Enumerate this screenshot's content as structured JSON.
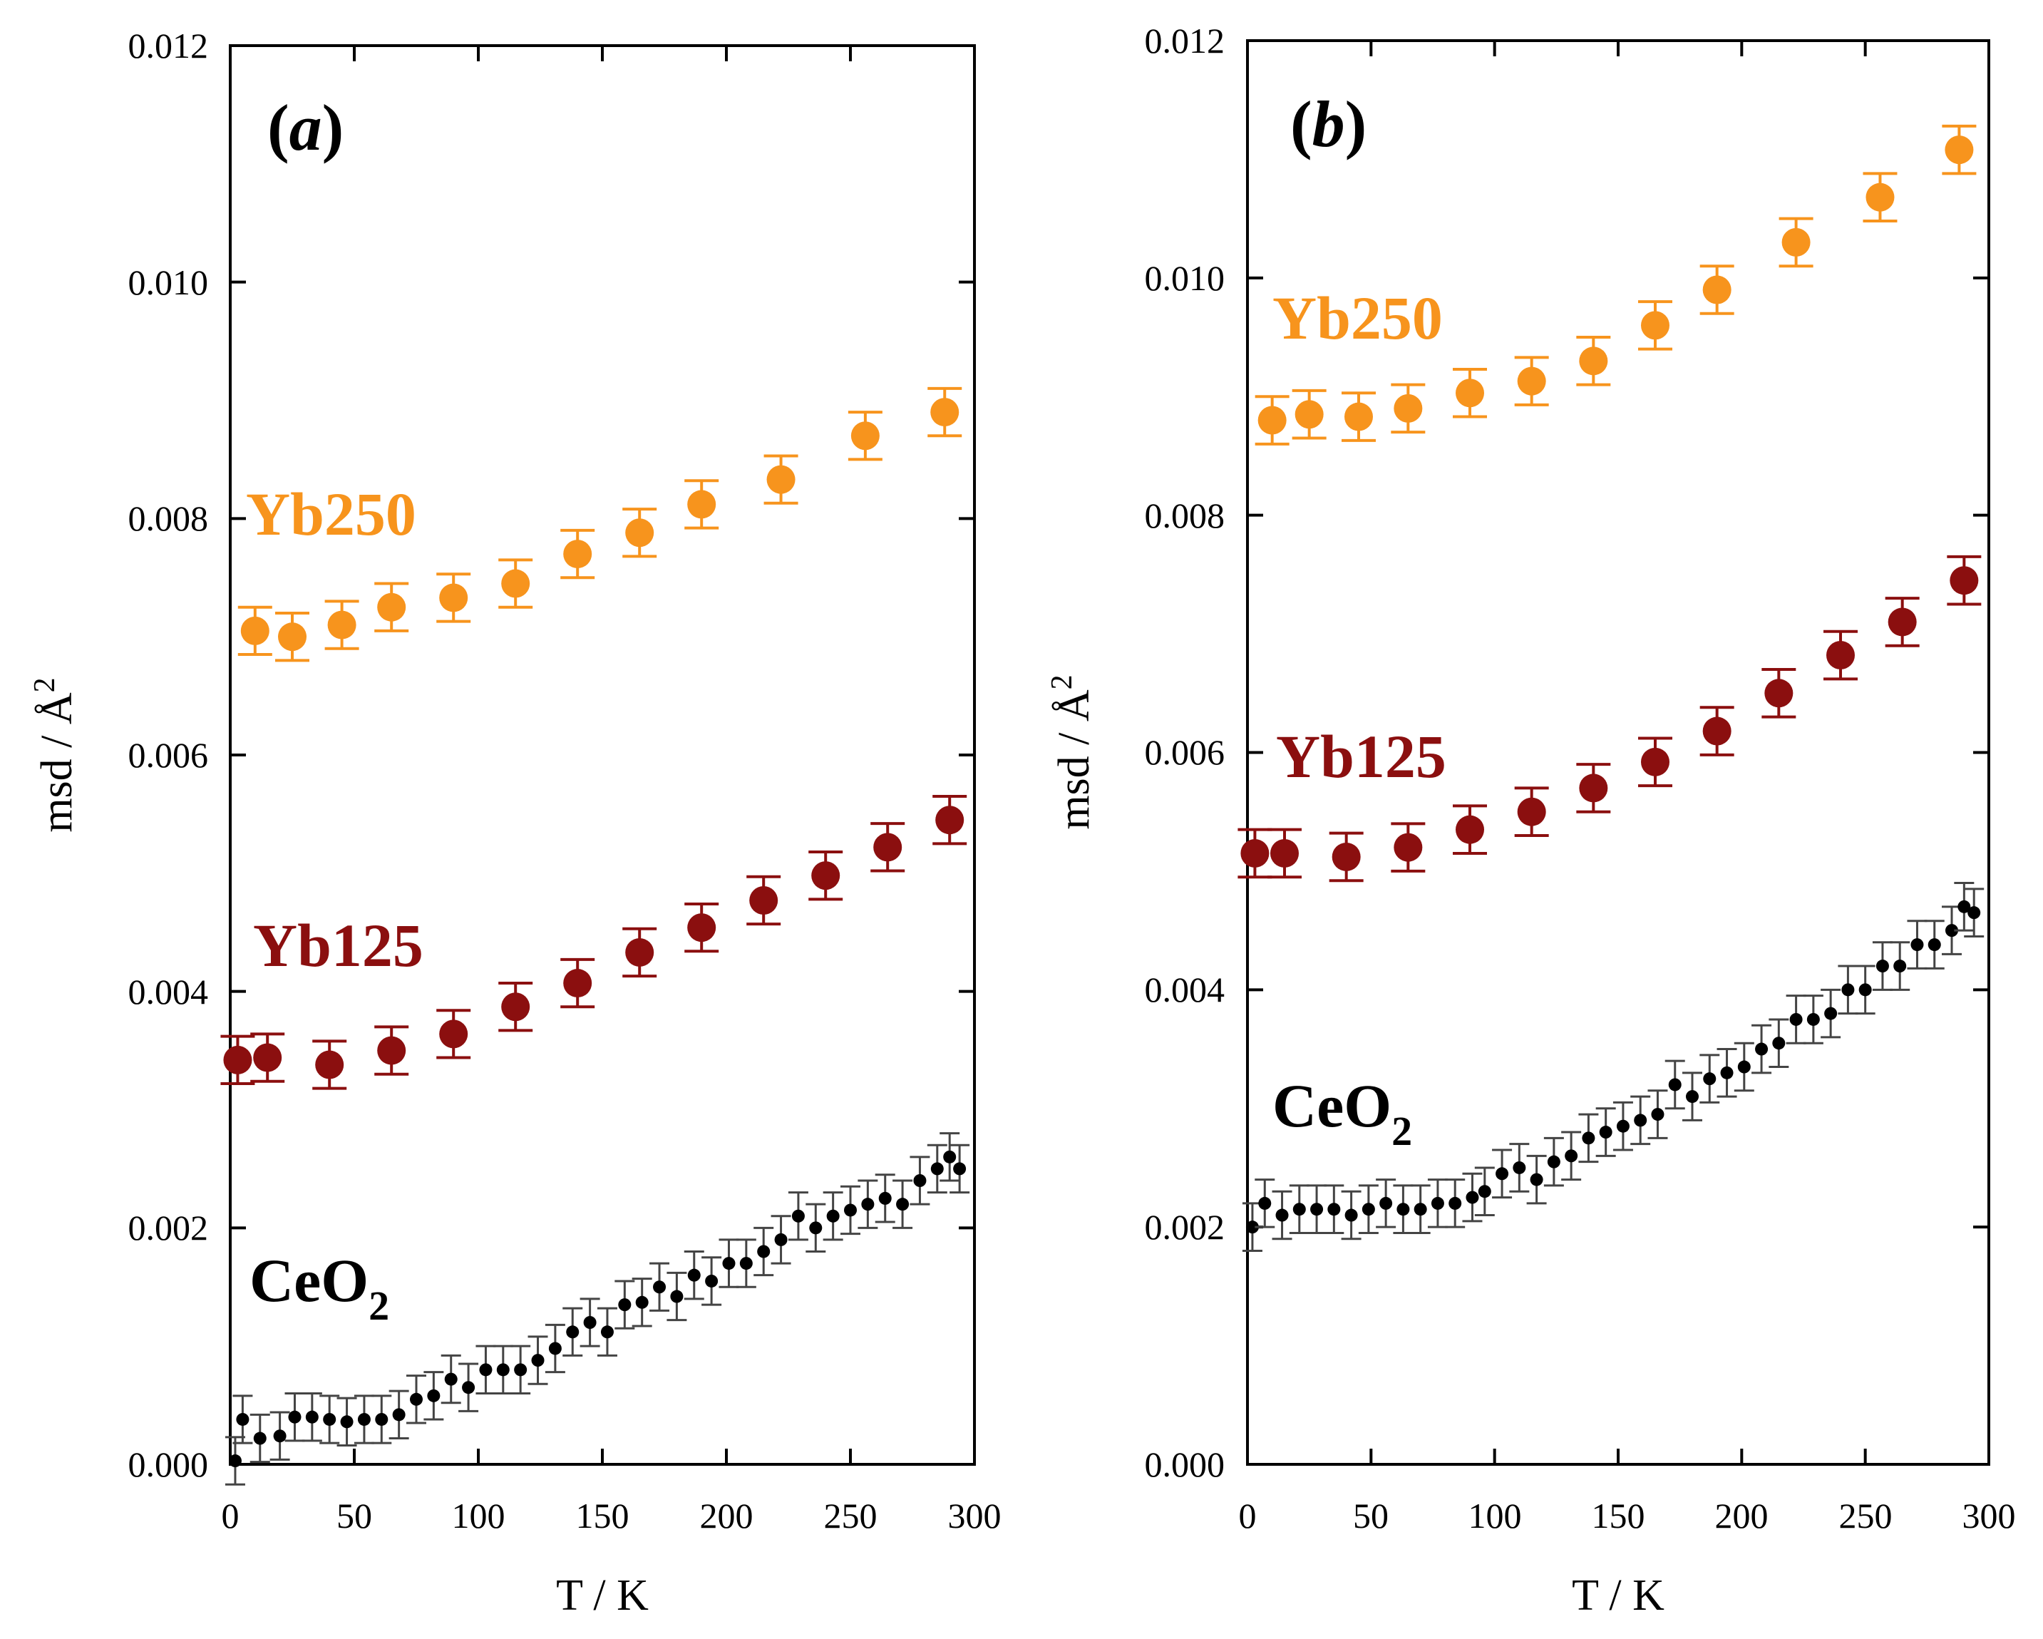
{
  "colors": {
    "yb250": "#f7941d",
    "yb125": "#8b0f0f",
    "ceo2": "#000000"
  },
  "chart_data": [
    {
      "type": "scatter",
      "panel": "(a)",
      "panel_letter": "a",
      "xlabel": "T / K",
      "ylabel": "msd / Å",
      "ylabel_exponent": "2",
      "xlim": [
        0,
        300
      ],
      "ylim": [
        0,
        0.012
      ],
      "x_ticks": [
        "0",
        "50",
        "100",
        "150",
        "200",
        "250",
        "300"
      ],
      "y_ticks": [
        "0.000",
        "0.002",
        "0.004",
        "0.006",
        "0.008",
        "0.010",
        "0.012"
      ],
      "series": [
        {
          "name": "Yb250",
          "label": "Yb250",
          "key": "yb250",
          "marker": "large",
          "x": [
            10,
            25,
            45,
            65,
            90,
            115,
            140,
            165,
            190,
            222,
            256,
            288
          ],
          "y": [
            0.00705,
            0.007,
            0.0071,
            0.00725,
            0.00733,
            0.00745,
            0.0077,
            0.00788,
            0.00812,
            0.00833,
            0.0087,
            0.0089
          ],
          "err": 0.0002
        },
        {
          "name": "Yb125",
          "label": "Yb125",
          "key": "yb125",
          "marker": "large",
          "x": [
            3,
            15,
            40,
            65,
            90,
            115,
            140,
            165,
            190,
            215,
            240,
            265,
            290
          ],
          "y": [
            0.00342,
            0.00344,
            0.00338,
            0.0035,
            0.00364,
            0.00387,
            0.00407,
            0.00433,
            0.00454,
            0.00477,
            0.00498,
            0.00522,
            0.00545
          ],
          "err": 0.0002
        },
        {
          "name": "CeO2",
          "label_main": "CeO",
          "label_sub": "2",
          "key": "ceo2",
          "marker": "small",
          "x": [
            2,
            5,
            12,
            20,
            26,
            33,
            40,
            47,
            54,
            61,
            68,
            75,
            82,
            89,
            96,
            103,
            110,
            117,
            124,
            131,
            138,
            145,
            152,
            159,
            166,
            173,
            180,
            187,
            194,
            201,
            208,
            215,
            222,
            229,
            236,
            243,
            250,
            257,
            264,
            271,
            278,
            285,
            290,
            294
          ],
          "y": [
            3e-05,
            0.00038,
            0.00022,
            0.00024,
            0.0004,
            0.0004,
            0.00038,
            0.00036,
            0.00038,
            0.00038,
            0.00042,
            0.00055,
            0.00058,
            0.00072,
            0.00065,
            0.0008,
            0.0008,
            0.0008,
            0.00088,
            0.00098,
            0.00112,
            0.0012,
            0.00112,
            0.00135,
            0.00137,
            0.0015,
            0.00142,
            0.0016,
            0.00155,
            0.0017,
            0.0017,
            0.0018,
            0.0019,
            0.0021,
            0.002,
            0.0021,
            0.00215,
            0.0022,
            0.00225,
            0.0022,
            0.0024,
            0.0025,
            0.0026,
            0.0025
          ],
          "err": 0.0002
        }
      ]
    },
    {
      "type": "scatter",
      "panel": "(b)",
      "panel_letter": "b",
      "xlabel": "T / K",
      "ylabel": "msd / Å",
      "ylabel_exponent": "2",
      "xlim": [
        0,
        300
      ],
      "ylim": [
        0,
        0.012
      ],
      "x_ticks": [
        "0",
        "50",
        "100",
        "150",
        "200",
        "250",
        "300"
      ],
      "y_ticks": [
        "0.000",
        "0.002",
        "0.004",
        "0.006",
        "0.008",
        "0.010",
        "0.012"
      ],
      "series": [
        {
          "name": "Yb250",
          "label": "Yb250",
          "key": "yb250",
          "marker": "large",
          "x": [
            10,
            25,
            45,
            65,
            90,
            115,
            140,
            165,
            190,
            222,
            256,
            288
          ],
          "y": [
            0.0088,
            0.00885,
            0.00883,
            0.0089,
            0.00903,
            0.00913,
            0.0093,
            0.0096,
            0.0099,
            0.0103,
            0.01068,
            0.01108
          ],
          "err": 0.0002
        },
        {
          "name": "Yb125",
          "label": "Yb125",
          "key": "yb125",
          "marker": "large",
          "x": [
            3,
            15,
            40,
            65,
            90,
            115,
            140,
            165,
            190,
            215,
            240,
            265,
            290
          ],
          "y": [
            0.00515,
            0.00515,
            0.00512,
            0.0052,
            0.00535,
            0.0055,
            0.0057,
            0.00592,
            0.00618,
            0.0065,
            0.00682,
            0.0071,
            0.00745
          ],
          "err": 0.0002
        },
        {
          "name": "CeO2",
          "label_main": "CeO",
          "label_sub": "2",
          "key": "ceo2",
          "marker": "small",
          "x": [
            2,
            7,
            14,
            21,
            28,
            35,
            42,
            49,
            56,
            63,
            70,
            77,
            84,
            91,
            96,
            103,
            110,
            117,
            124,
            131,
            138,
            145,
            152,
            159,
            166,
            173,
            180,
            187,
            194,
            201,
            208,
            215,
            222,
            229,
            236,
            243,
            250,
            257,
            264,
            271,
            278,
            285,
            290,
            294
          ],
          "y": [
            0.002,
            0.0022,
            0.0021,
            0.00215,
            0.00215,
            0.00215,
            0.0021,
            0.00215,
            0.0022,
            0.00215,
            0.00215,
            0.0022,
            0.0022,
            0.00225,
            0.0023,
            0.00245,
            0.0025,
            0.0024,
            0.00255,
            0.0026,
            0.00275,
            0.0028,
            0.00285,
            0.0029,
            0.00295,
            0.0032,
            0.0031,
            0.00325,
            0.0033,
            0.00335,
            0.0035,
            0.00355,
            0.00375,
            0.00375,
            0.0038,
            0.004,
            0.004,
            0.0042,
            0.0042,
            0.00438,
            0.00438,
            0.0045,
            0.0047,
            0.00465
          ],
          "err": 0.0002
        }
      ]
    }
  ]
}
